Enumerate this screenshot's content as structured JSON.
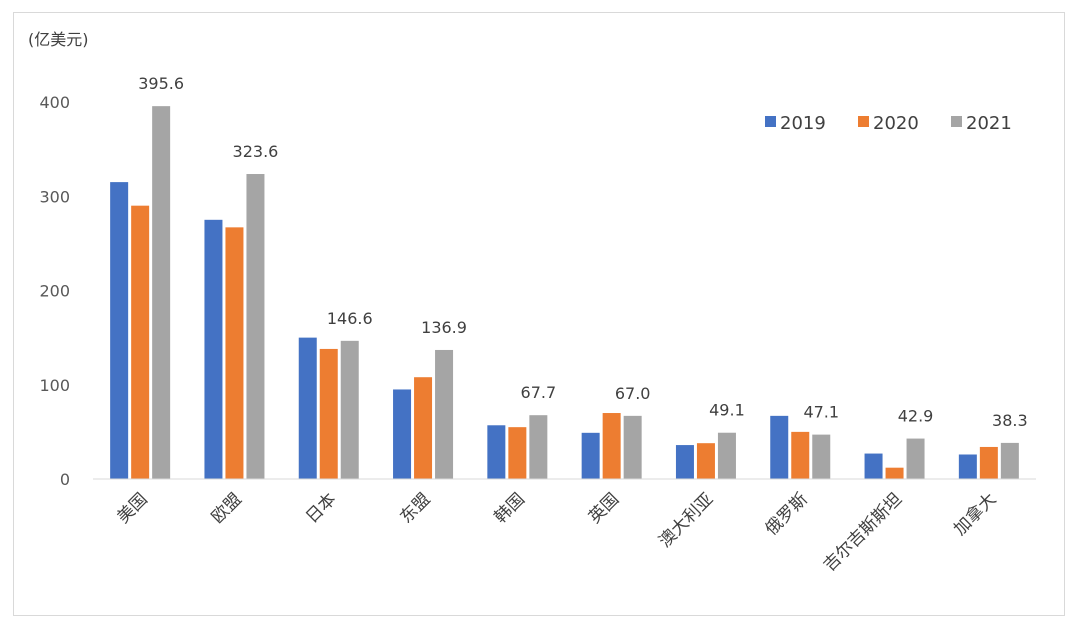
{
  "chart_data": {
    "type": "bar",
    "unit_label": "(亿美元)",
    "categories": [
      "美国",
      "欧盟",
      "日本",
      "东盟",
      "韩国",
      "英国",
      "澳大利亚",
      "俄罗斯",
      "吉尔吉斯斯坦",
      "加拿大"
    ],
    "series": [
      {
        "name": "2019",
        "color": "#4472C4",
        "values": [
          315,
          275,
          150,
          95,
          57,
          49,
          36,
          67,
          27,
          26
        ]
      },
      {
        "name": "2020",
        "color": "#ED7D31",
        "values": [
          290,
          267,
          138,
          108,
          55,
          70,
          38,
          50,
          12,
          34
        ]
      },
      {
        "name": "2021",
        "color": "#A5A5A5",
        "values": [
          395.6,
          323.6,
          146.6,
          136.9,
          67.7,
          67.0,
          49.1,
          47.1,
          42.9,
          38.3
        ]
      }
    ],
    "data_labels": [
      "395.6",
      "323.6",
      "146.6",
      "136.9",
      "67.7",
      "67.0",
      "49.1",
      "47.1",
      "42.9",
      "38.3"
    ],
    "y_ticks": [
      "0",
      "100",
      "200",
      "300",
      "400"
    ],
    "ylim": [
      0,
      400
    ],
    "grid": false,
    "legend_position": "top-right"
  }
}
